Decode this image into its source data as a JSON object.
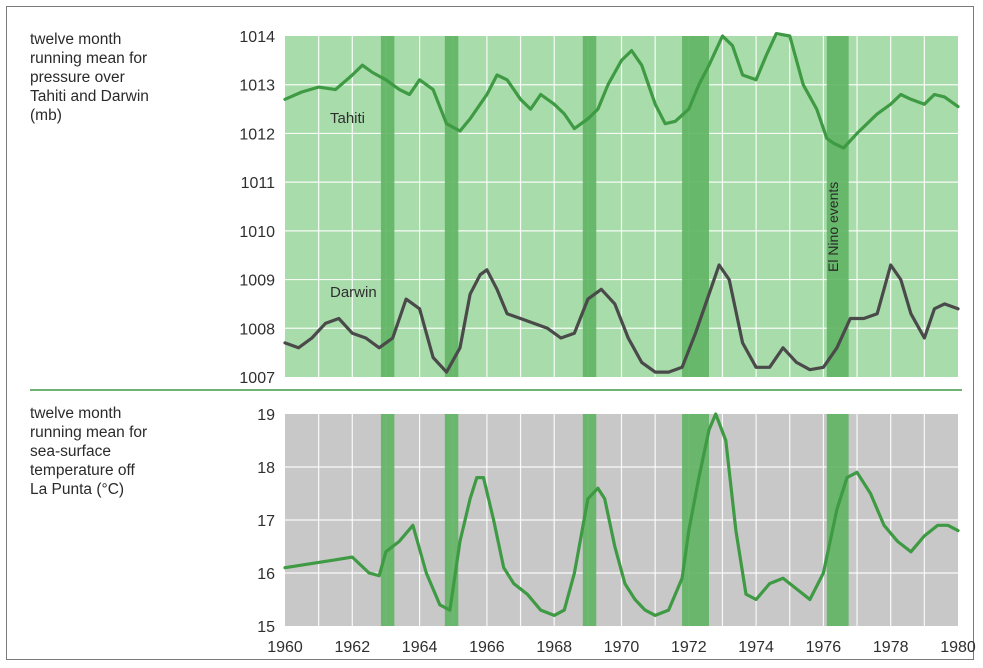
{
  "chart_data": [
    {
      "type": "line",
      "description": "twelve month\nrunning mean for\npressure over\nTahiti and Darwin\n(mb)",
      "y_ticks": [
        "1014",
        "1013",
        "1012",
        "1011",
        "1010",
        "1009",
        "1008",
        "1007"
      ],
      "ylim": [
        1007,
        1014
      ],
      "xlim": [
        1960,
        1980
      ],
      "background": "#a9dcab",
      "grid": true,
      "event_label": "El Nino events",
      "series": [
        {
          "name": "Tahiti",
          "color": "#3f9a44",
          "x": [
            1960.0,
            1960.5,
            1961.0,
            1961.5,
            1962.0,
            1962.3,
            1962.6,
            1963.0,
            1963.4,
            1963.7,
            1964.0,
            1964.4,
            1964.8,
            1965.2,
            1965.5,
            1965.8,
            1966.0,
            1966.3,
            1966.6,
            1967.0,
            1967.3,
            1967.6,
            1968.0,
            1968.3,
            1968.6,
            1969.0,
            1969.3,
            1969.6,
            1970.0,
            1970.3,
            1970.6,
            1971.0,
            1971.3,
            1971.6,
            1972.0,
            1972.3,
            1972.6,
            1973.0,
            1973.3,
            1973.6,
            1974.0,
            1974.3,
            1974.6,
            1975.0,
            1975.4,
            1975.8,
            1976.1,
            1976.3,
            1976.6,
            1977.0,
            1977.3,
            1977.6,
            1978.0,
            1978.3,
            1978.6,
            1979.0,
            1979.3,
            1979.6,
            1980.0
          ],
          "values": [
            1012.7,
            1012.85,
            1012.95,
            1012.9,
            1013.2,
            1013.4,
            1013.25,
            1013.1,
            1012.9,
            1012.8,
            1013.1,
            1012.9,
            1012.2,
            1012.05,
            1012.3,
            1012.6,
            1012.8,
            1013.2,
            1013.1,
            1012.7,
            1012.5,
            1012.8,
            1012.6,
            1012.4,
            1012.1,
            1012.3,
            1012.5,
            1013.0,
            1013.5,
            1013.7,
            1013.4,
            1012.6,
            1012.2,
            1012.25,
            1012.5,
            1013.0,
            1013.4,
            1014.0,
            1013.8,
            1013.2,
            1013.1,
            1013.6,
            1014.05,
            1014.0,
            1013.0,
            1012.5,
            1011.9,
            1011.8,
            1011.7,
            1012.0,
            1012.2,
            1012.4,
            1012.6,
            1012.8,
            1012.7,
            1012.6,
            1012.8,
            1012.75,
            1012.55
          ]
        },
        {
          "name": "Darwin",
          "color": "#4a4a4a",
          "x": [
            1960.0,
            1960.4,
            1960.8,
            1961.2,
            1961.6,
            1962.0,
            1962.4,
            1962.8,
            1963.2,
            1963.6,
            1964.0,
            1964.4,
            1964.8,
            1965.2,
            1965.5,
            1965.8,
            1966.0,
            1966.3,
            1966.6,
            1967.0,
            1967.4,
            1967.8,
            1968.2,
            1968.6,
            1969.0,
            1969.4,
            1969.8,
            1970.2,
            1970.6,
            1971.0,
            1971.4,
            1971.8,
            1972.2,
            1972.6,
            1972.9,
            1973.2,
            1973.6,
            1974.0,
            1974.4,
            1974.8,
            1975.2,
            1975.6,
            1976.0,
            1976.4,
            1976.8,
            1977.2,
            1977.6,
            1978.0,
            1978.3,
            1978.6,
            1979.0,
            1979.3,
            1979.6,
            1980.0
          ],
          "values": [
            1007.7,
            1007.6,
            1007.8,
            1008.1,
            1008.2,
            1007.9,
            1007.8,
            1007.6,
            1007.8,
            1008.6,
            1008.4,
            1007.4,
            1007.1,
            1007.6,
            1008.7,
            1009.1,
            1009.2,
            1008.8,
            1008.3,
            1008.2,
            1008.1,
            1008.0,
            1007.8,
            1007.9,
            1008.6,
            1008.8,
            1008.5,
            1007.8,
            1007.3,
            1007.1,
            1007.1,
            1007.2,
            1007.9,
            1008.7,
            1009.3,
            1009.0,
            1007.7,
            1007.2,
            1007.2,
            1007.6,
            1007.3,
            1007.15,
            1007.2,
            1007.6,
            1008.2,
            1008.2,
            1008.3,
            1009.3,
            1009.0,
            1008.3,
            1007.8,
            1008.4,
            1008.5,
            1008.4
          ]
        }
      ]
    },
    {
      "type": "line",
      "description": "twelve month\nrunning mean for\nsea-surface\ntemperature off\nLa Punta (°C)",
      "y_ticks": [
        "19",
        "18",
        "17",
        "16",
        "15"
      ],
      "ylim": [
        15,
        19
      ],
      "xlim": [
        1960,
        1980
      ],
      "x_ticks": [
        "1960",
        "1962",
        "1964",
        "1966",
        "1968",
        "1970",
        "1972",
        "1974",
        "1976",
        "1978",
        "1980"
      ],
      "background": "#c8c8c8",
      "grid": true,
      "series": [
        {
          "color": "#3f9a44",
          "x": [
            1960.0,
            1960.5,
            1961.0,
            1961.5,
            1962.0,
            1962.5,
            1962.8,
            1963.0,
            1963.4,
            1963.8,
            1964.2,
            1964.6,
            1964.9,
            1965.2,
            1965.5,
            1965.7,
            1965.9,
            1966.2,
            1966.5,
            1966.8,
            1967.2,
            1967.6,
            1968.0,
            1968.3,
            1968.6,
            1969.0,
            1969.3,
            1969.5,
            1969.8,
            1970.1,
            1970.4,
            1970.7,
            1971.0,
            1971.4,
            1971.8,
            1972.0,
            1972.3,
            1972.6,
            1972.8,
            1973.1,
            1973.4,
            1973.7,
            1974.0,
            1974.4,
            1974.8,
            1975.2,
            1975.6,
            1976.0,
            1976.4,
            1976.7,
            1977.0,
            1977.4,
            1977.8,
            1978.2,
            1978.6,
            1979.0,
            1979.4,
            1979.7,
            1980.0
          ],
          "values": [
            16.1,
            16.15,
            16.2,
            16.25,
            16.3,
            16.0,
            15.95,
            16.4,
            16.6,
            16.9,
            16.0,
            15.4,
            15.3,
            16.6,
            17.4,
            17.8,
            17.8,
            17.0,
            16.1,
            15.8,
            15.6,
            15.3,
            15.2,
            15.3,
            16.0,
            17.4,
            17.6,
            17.4,
            16.5,
            15.8,
            15.5,
            15.3,
            15.2,
            15.3,
            15.9,
            16.8,
            17.8,
            18.7,
            19.0,
            18.5,
            16.8,
            15.6,
            15.5,
            15.8,
            15.9,
            15.7,
            15.5,
            16.0,
            17.2,
            17.8,
            17.9,
            17.5,
            16.9,
            16.6,
            16.4,
            16.7,
            16.9,
            16.9,
            16.8
          ]
        }
      ]
    }
  ],
  "el_nino_events": [
    {
      "start": 1962.85,
      "end": 1963.25
    },
    {
      "start": 1964.75,
      "end": 1965.15
    },
    {
      "start": 1968.85,
      "end": 1969.25
    },
    {
      "start": 1971.8,
      "end": 1972.6
    },
    {
      "start": 1976.1,
      "end": 1976.75
    }
  ],
  "event_color": "#5fb463"
}
